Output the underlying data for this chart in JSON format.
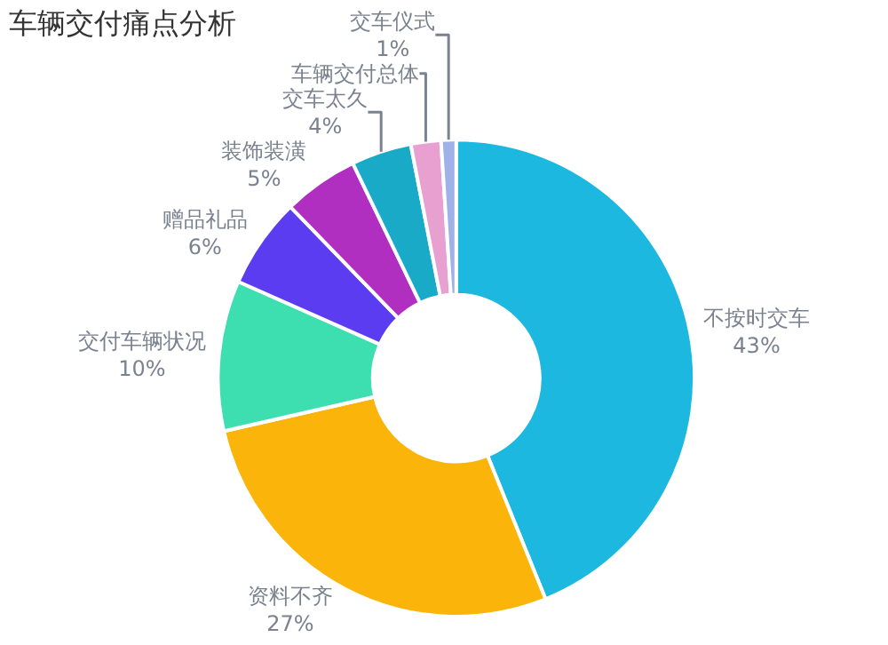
{
  "chart_data": {
    "type": "donut",
    "title": "车辆交付痛点分析",
    "categories": [
      "不按时交车",
      "资料不齐",
      "交付车辆状况",
      "赠品礼品",
      "装饰装潢",
      "交车太久",
      "车辆交付总体",
      "交车仪式"
    ],
    "values": [
      43,
      27,
      10,
      6,
      5,
      4,
      2,
      1
    ],
    "value_labels": [
      "43%",
      "27%",
      "10%",
      "6%",
      "5%",
      "4%",
      null,
      "1%"
    ],
    "colors": [
      "#1cb8e0",
      "#fbb40a",
      "#3ddfb0",
      "#5b3cf0",
      "#b02ec0",
      "#19aac8",
      "#e8a0d0",
      "#a0b0e8"
    ],
    "legend": false
  }
}
